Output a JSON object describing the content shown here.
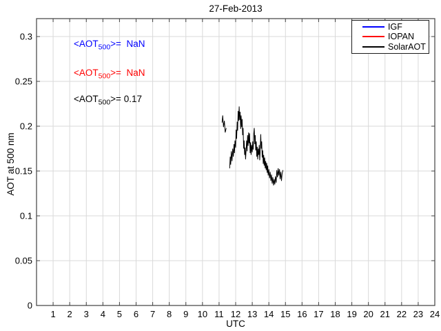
{
  "chart_data": {
    "type": "line",
    "title": "27-Feb-2013",
    "xlabel": "UTC",
    "ylabel": "AOT at 500 nm",
    "xlim": [
      0,
      24
    ],
    "ylim": [
      0,
      0.32
    ],
    "x_ticks": [
      1,
      2,
      3,
      4,
      5,
      6,
      7,
      8,
      9,
      10,
      11,
      12,
      13,
      14,
      15,
      16,
      17,
      18,
      19,
      20,
      21,
      22,
      23,
      24
    ],
    "y_ticks": [
      0,
      0.05,
      0.1,
      0.15,
      0.2,
      0.25,
      0.3
    ],
    "y_tick_labels": [
      "0",
      "0.05",
      "0.1",
      "0.15",
      "0.2",
      "0.25",
      "0.3"
    ],
    "grid": true,
    "legend_position": "top-right",
    "colors": {
      "grid": "#d9d9d9",
      "axis": "#404040",
      "background": "#ffffff"
    },
    "series": [
      {
        "name": "IGF",
        "color": "#0000ff",
        "segments": []
      },
      {
        "name": "IOPAN",
        "color": "#ff0000",
        "segments": []
      },
      {
        "name": "SolarAOT",
        "color": "#000000",
        "segments": [
          [
            [
              11.18,
              0.204
            ],
            [
              11.22,
              0.212
            ],
            [
              11.27,
              0.199
            ],
            [
              11.32,
              0.206
            ],
            [
              11.37,
              0.193
            ],
            [
              11.43,
              0.198
            ]
          ],
          [
            [
              11.64,
              0.153
            ],
            [
              11.67,
              0.166
            ],
            [
              11.7,
              0.157
            ],
            [
              11.74,
              0.172
            ],
            [
              11.78,
              0.161
            ],
            [
              11.82,
              0.175
            ],
            [
              11.86,
              0.166
            ],
            [
              11.9,
              0.18
            ],
            [
              11.93,
              0.17
            ],
            [
              11.96,
              0.184
            ],
            [
              12.0,
              0.176
            ],
            [
              12.03,
              0.196
            ],
            [
              12.06,
              0.186
            ],
            [
              12.09,
              0.205
            ],
            [
              12.12,
              0.195
            ],
            [
              12.15,
              0.217
            ],
            [
              12.18,
              0.206
            ],
            [
              12.21,
              0.222
            ],
            [
              12.24,
              0.207
            ],
            [
              12.27,
              0.216
            ],
            [
              12.3,
              0.197
            ],
            [
              12.33,
              0.212
            ],
            [
              12.36,
              0.199
            ],
            [
              12.39,
              0.208
            ],
            [
              12.42,
              0.19
            ],
            [
              12.45,
              0.198
            ],
            [
              12.48,
              0.175
            ],
            [
              12.51,
              0.184
            ],
            [
              12.54,
              0.168
            ],
            [
              12.57,
              0.176
            ],
            [
              12.6,
              0.163
            ],
            [
              12.63,
              0.174
            ],
            [
              12.66,
              0.184
            ],
            [
              12.69,
              0.172
            ],
            [
              12.72,
              0.19
            ],
            [
              12.75,
              0.178
            ],
            [
              12.78,
              0.193
            ],
            [
              12.81,
              0.181
            ],
            [
              12.84,
              0.192
            ],
            [
              12.87,
              0.17
            ],
            [
              12.9,
              0.182
            ],
            [
              12.93,
              0.168
            ],
            [
              12.96,
              0.179
            ],
            [
              13.0,
              0.171
            ],
            [
              13.03,
              0.183
            ],
            [
              13.06,
              0.174
            ],
            [
              13.09,
              0.192
            ],
            [
              13.12,
              0.198
            ],
            [
              13.15,
              0.18
            ],
            [
              13.18,
              0.19
            ],
            [
              13.21,
              0.173
            ],
            [
              13.24,
              0.183
            ],
            [
              13.27,
              0.166
            ],
            [
              13.3,
              0.177
            ],
            [
              13.33,
              0.163
            ],
            [
              13.36,
              0.175
            ],
            [
              13.39,
              0.168
            ],
            [
              13.42,
              0.179
            ],
            [
              13.45,
              0.162
            ],
            [
              13.48,
              0.172
            ],
            [
              13.51,
              0.191
            ],
            [
              13.54,
              0.175
            ],
            [
              13.57,
              0.183
            ],
            [
              13.6,
              0.165
            ],
            [
              13.63,
              0.173
            ],
            [
              13.66,
              0.158
            ],
            [
              13.69,
              0.168
            ],
            [
              13.72,
              0.156
            ],
            [
              13.75,
              0.165
            ],
            [
              13.78,
              0.153
            ],
            [
              13.81,
              0.161
            ],
            [
              13.84,
              0.151
            ],
            [
              13.87,
              0.159
            ],
            [
              13.9,
              0.148
            ],
            [
              13.93,
              0.156
            ],
            [
              13.96,
              0.145
            ],
            [
              14.0,
              0.152
            ],
            [
              14.04,
              0.142
            ],
            [
              14.08,
              0.149
            ],
            [
              14.12,
              0.139
            ],
            [
              14.16,
              0.146
            ],
            [
              14.2,
              0.136
            ],
            [
              14.24,
              0.143
            ],
            [
              14.28,
              0.134
            ],
            [
              14.32,
              0.141
            ],
            [
              14.36,
              0.135
            ],
            [
              14.4,
              0.144
            ],
            [
              14.44,
              0.137
            ],
            [
              14.48,
              0.151
            ],
            [
              14.52,
              0.143
            ],
            [
              14.56,
              0.153
            ],
            [
              14.6,
              0.145
            ],
            [
              14.64,
              0.152
            ],
            [
              14.68,
              0.141
            ],
            [
              14.72,
              0.149
            ],
            [
              14.76,
              0.139
            ],
            [
              14.8,
              0.147
            ],
            [
              14.85,
              0.151
            ]
          ]
        ]
      }
    ]
  },
  "annotations": [
    {
      "prefix": "<AOT",
      "sub": "500",
      "suffix": ">=  NaN",
      "color": "#0000ff"
    },
    {
      "prefix": "<AOT",
      "sub": "500",
      "suffix": ">=  NaN",
      "color": "#ff0000"
    },
    {
      "prefix": "<AOT",
      "sub": "500",
      "suffix": ">= 0.17",
      "color": "#000000"
    }
  ]
}
